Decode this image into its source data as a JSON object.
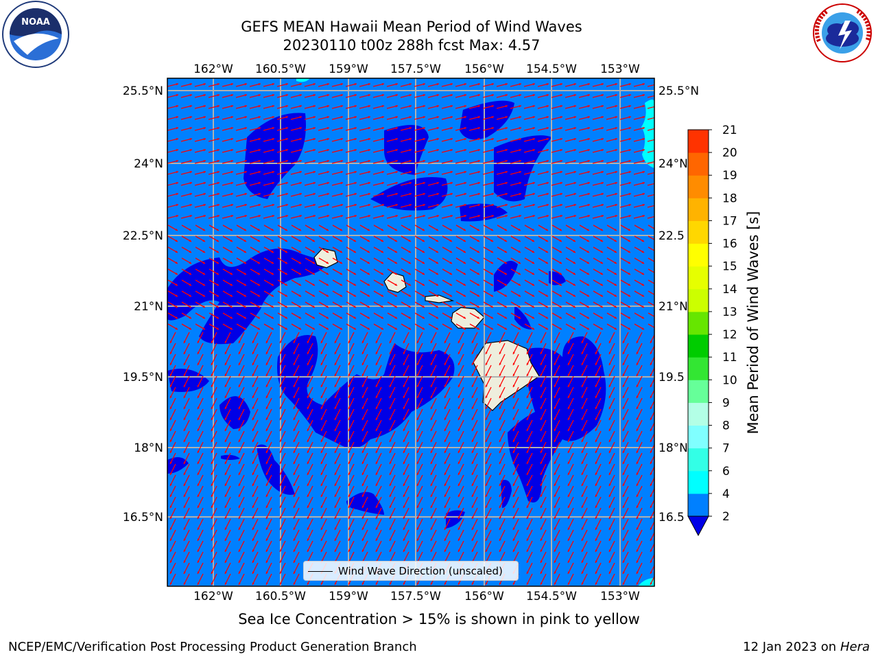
{
  "header": {
    "title_line1": "GEFS MEAN Hawaii Mean Period of Wind Waves",
    "title_line2": "20230110 t00z 288h fcst   Max: 4.57"
  },
  "logos": {
    "left": {
      "name": "NOAA",
      "ring_text": "NATIONAL OCEANIC AND ATMOSPHERIC ADMINISTRATION",
      "bottom_text": "U.S. DEPARTMENT OF COMMERCE"
    },
    "right": {
      "name": "NATIONAL WEATHER SERVICE"
    }
  },
  "map": {
    "lon_ticks": [
      "162°W",
      "160.5°W",
      "159°W",
      "157.5°W",
      "156°W",
      "154.5°W",
      "153°W"
    ],
    "lat_ticks": [
      "25.5°N",
      "24°N",
      "22.5°N",
      "21°N",
      "19.5°N",
      "18°N",
      "16.5°N"
    ],
    "lat_ticks_right": [
      "25.5°N",
      "24°N",
      "22.5",
      "21°N",
      "19.5",
      "18°N",
      "16.5"
    ],
    "ocean_color": "#0080ff",
    "low_period_color": "#0000e6",
    "high_period_color": "#00ffff",
    "land_color": "#eeeedd",
    "arrow_color": "#ff0000",
    "legend_label": "Wind Wave Direction (unscaled)"
  },
  "colorbar": {
    "label": "Mean Period of Wind Waves [s]",
    "ticks": [
      "2",
      "4",
      "6",
      "7",
      "8",
      "9",
      "10",
      "11",
      "12",
      "13",
      "14",
      "15",
      "16",
      "17",
      "18",
      "19",
      "20",
      "21"
    ],
    "colors": [
      "#0080ff",
      "#00ffff",
      "#33ffe6",
      "#80ffff",
      "#b3ffe6",
      "#66ff99",
      "#33e633",
      "#00cc00",
      "#66e600",
      "#ccff00",
      "#e6ff00",
      "#ffff00",
      "#ffd700",
      "#ffb300",
      "#ff8c00",
      "#ff6600",
      "#ff3300"
    ],
    "under_color": "#0000e6"
  },
  "footer": {
    "caption": "Sea Ice Concentration > 15% is shown in pink to yellow",
    "left": "NCEP/EMC/Verification Post Processing Product Generation Branch",
    "right_date": "12 Jan 2023 on ",
    "right_host": "Hera"
  }
}
